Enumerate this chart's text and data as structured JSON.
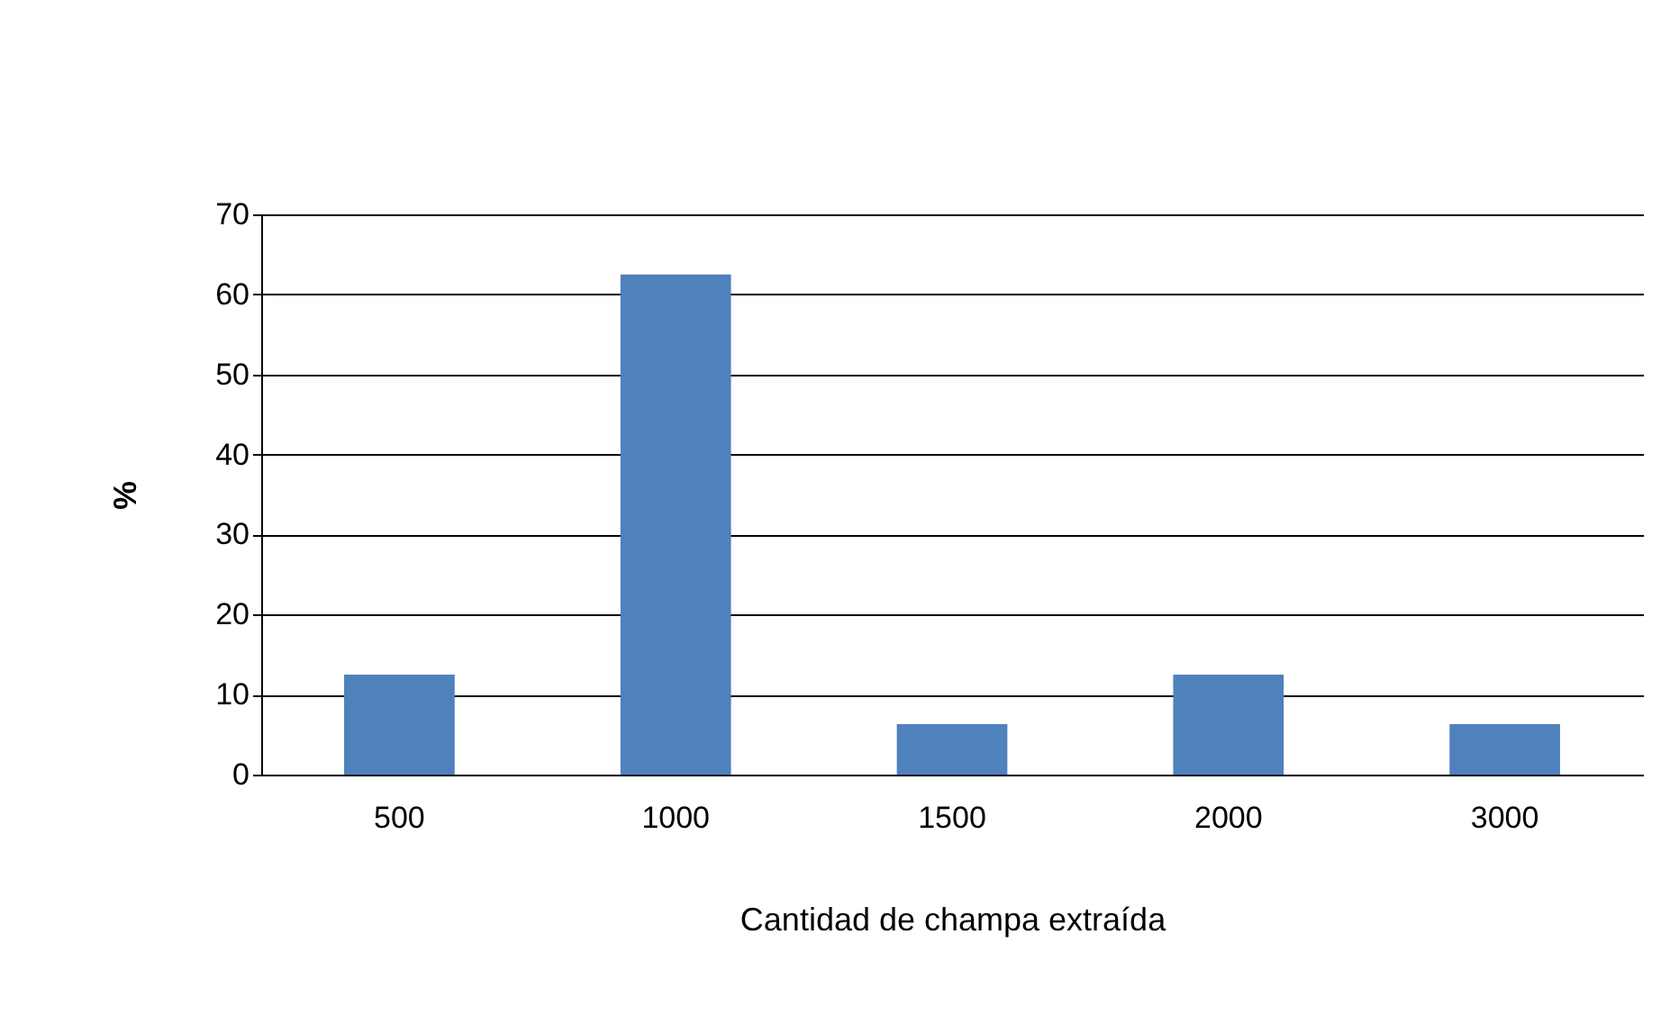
{
  "chart_data": {
    "type": "bar",
    "xlabel": "Cantidad de champa extraída",
    "ylabel": "%",
    "categories": [
      "500",
      "1000",
      "1500",
      "2000",
      "3000"
    ],
    "values": [
      12.5,
      62.5,
      6.3,
      12.5,
      6.3
    ],
    "color": "#4f81bd",
    "ylim": [
      0,
      70
    ],
    "yticks": [
      0,
      10,
      20,
      30,
      40,
      50,
      60,
      70
    ],
    "grid": "y"
  }
}
